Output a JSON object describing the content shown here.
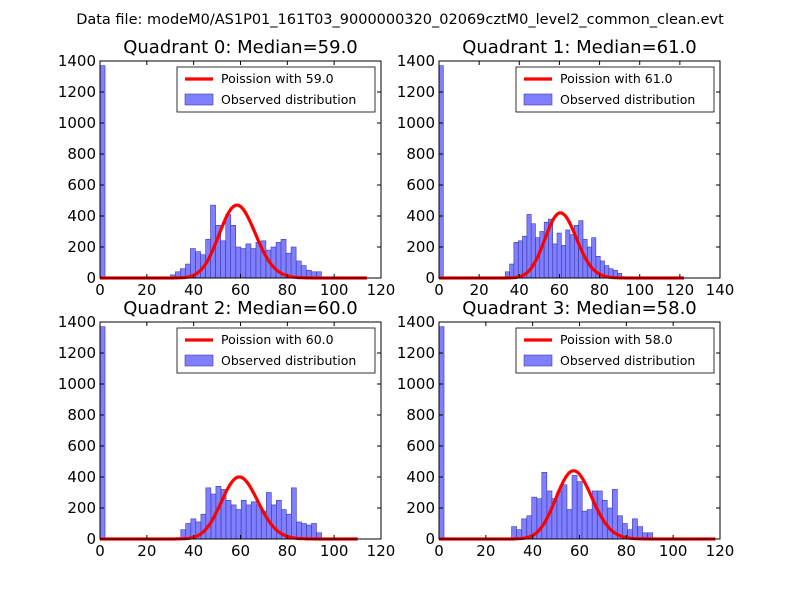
{
  "suptitle": "Data file: modeM0/AS1P01_161T03_9000000320_02069cztM0_level2_common_clean.evt",
  "colors": {
    "bar_fill": "#7f7fff",
    "bar_edge": "#3a3aa8",
    "poisson_line": "#ff0000"
  },
  "chart_data": [
    {
      "type": "bar+line",
      "title": "Quadrant 0: Median=59.0",
      "xlim": [
        0,
        120
      ],
      "ylim": [
        0,
        1400
      ],
      "xticks": [
        0,
        20,
        40,
        60,
        80,
        100,
        120
      ],
      "yticks": [
        0,
        200,
        400,
        600,
        800,
        1000,
        1200,
        1400
      ],
      "legend": {
        "position": "top-right",
        "line_label": "Poission with 59.0",
        "bar_label": "Observed distribution"
      },
      "histogram": {
        "bin_width": 2.15,
        "bins": [
          {
            "x": 0,
            "count": 1370
          },
          {
            "x": 30,
            "count": 20
          },
          {
            "x": 32.2,
            "count": 40
          },
          {
            "x": 34.3,
            "count": 60
          },
          {
            "x": 36.5,
            "count": 90
          },
          {
            "x": 38.6,
            "count": 190
          },
          {
            "x": 40.8,
            "count": 170
          },
          {
            "x": 42.9,
            "count": 150
          },
          {
            "x": 45.1,
            "count": 250
          },
          {
            "x": 47.2,
            "count": 470
          },
          {
            "x": 49.4,
            "count": 340
          },
          {
            "x": 51.5,
            "count": 240
          },
          {
            "x": 53.7,
            "count": 410
          },
          {
            "x": 55.8,
            "count": 340
          },
          {
            "x": 58,
            "count": 200
          },
          {
            "x": 60.1,
            "count": 190
          },
          {
            "x": 62.3,
            "count": 220
          },
          {
            "x": 64.4,
            "count": 190
          },
          {
            "x": 66.6,
            "count": 230
          },
          {
            "x": 68.7,
            "count": 240
          },
          {
            "x": 70.9,
            "count": 180
          },
          {
            "x": 73,
            "count": 200
          },
          {
            "x": 75.2,
            "count": 230
          },
          {
            "x": 77.3,
            "count": 250
          },
          {
            "x": 79.5,
            "count": 160
          },
          {
            "x": 81.6,
            "count": 200
          },
          {
            "x": 83.8,
            "count": 110
          },
          {
            "x": 85.9,
            "count": 80
          },
          {
            "x": 88.1,
            "count": 50
          },
          {
            "x": 90.2,
            "count": 40
          },
          {
            "x": 92.4,
            "count": 40
          }
        ]
      },
      "poisson": {
        "mean": 59,
        "peak": 470,
        "x_range": [
          0,
          114
        ]
      }
    },
    {
      "type": "bar+line",
      "title": "Quadrant 1: Median=61.0",
      "xlim": [
        0,
        140
      ],
      "ylim": [
        0,
        1400
      ],
      "xticks": [
        0,
        20,
        40,
        60,
        80,
        100,
        120,
        140
      ],
      "yticks": [
        0,
        200,
        400,
        600,
        800,
        1000,
        1200,
        1400
      ],
      "legend": {
        "position": "top-right",
        "line_label": "Poission with 61.0",
        "bar_label": "Observed distribution"
      },
      "histogram": {
        "bin_width": 2.15,
        "bins": [
          {
            "x": 0,
            "count": 1370
          },
          {
            "x": 33,
            "count": 40
          },
          {
            "x": 35.2,
            "count": 90
          },
          {
            "x": 37.3,
            "count": 230
          },
          {
            "x": 39.5,
            "count": 240
          },
          {
            "x": 41.6,
            "count": 270
          },
          {
            "x": 43.8,
            "count": 410
          },
          {
            "x": 45.9,
            "count": 350
          },
          {
            "x": 48.1,
            "count": 260
          },
          {
            "x": 50.2,
            "count": 300
          },
          {
            "x": 52.4,
            "count": 360
          },
          {
            "x": 54.5,
            "count": 380
          },
          {
            "x": 56.7,
            "count": 220
          },
          {
            "x": 58.8,
            "count": 290
          },
          {
            "x": 61,
            "count": 210
          },
          {
            "x": 63.1,
            "count": 310
          },
          {
            "x": 65.3,
            "count": 280
          },
          {
            "x": 67.4,
            "count": 340
          },
          {
            "x": 69.6,
            "count": 370
          },
          {
            "x": 71.7,
            "count": 250
          },
          {
            "x": 73.9,
            "count": 200
          },
          {
            "x": 76,
            "count": 260
          },
          {
            "x": 78.2,
            "count": 140
          },
          {
            "x": 80.3,
            "count": 110
          },
          {
            "x": 82.5,
            "count": 80
          },
          {
            "x": 84.6,
            "count": 60
          },
          {
            "x": 86.8,
            "count": 50
          },
          {
            "x": 88.9,
            "count": 30
          }
        ]
      },
      "poisson": {
        "mean": 61,
        "peak": 420,
        "x_range": [
          0,
          122
        ]
      }
    },
    {
      "type": "bar+line",
      "title": "Quadrant 2: Median=60.0",
      "xlim": [
        0,
        120
      ],
      "ylim": [
        0,
        1400
      ],
      "xticks": [
        0,
        20,
        40,
        60,
        80,
        100,
        120
      ],
      "yticks": [
        0,
        200,
        400,
        600,
        800,
        1000,
        1200,
        1400
      ],
      "legend": {
        "position": "top-right",
        "line_label": "Poission with 60.0",
        "bar_label": "Observed distribution"
      },
      "histogram": {
        "bin_width": 2.15,
        "bins": [
          {
            "x": 0,
            "count": 1370
          },
          {
            "x": 34.5,
            "count": 60
          },
          {
            "x": 36.6,
            "count": 100
          },
          {
            "x": 38.8,
            "count": 130
          },
          {
            "x": 40.9,
            "count": 110
          },
          {
            "x": 43.1,
            "count": 160
          },
          {
            "x": 45.2,
            "count": 330
          },
          {
            "x": 47.4,
            "count": 290
          },
          {
            "x": 49.5,
            "count": 340
          },
          {
            "x": 51.7,
            "count": 320
          },
          {
            "x": 53.8,
            "count": 250
          },
          {
            "x": 56,
            "count": 220
          },
          {
            "x": 58.1,
            "count": 190
          },
          {
            "x": 60.3,
            "count": 250
          },
          {
            "x": 62.4,
            "count": 220
          },
          {
            "x": 64.6,
            "count": 240
          },
          {
            "x": 66.7,
            "count": 220
          },
          {
            "x": 68.9,
            "count": 180
          },
          {
            "x": 71,
            "count": 300
          },
          {
            "x": 73.2,
            "count": 220
          },
          {
            "x": 75.3,
            "count": 250
          },
          {
            "x": 77.4,
            "count": 190
          },
          {
            "x": 79.6,
            "count": 160
          },
          {
            "x": 81.7,
            "count": 330
          },
          {
            "x": 83.9,
            "count": 110
          },
          {
            "x": 86,
            "count": 100
          },
          {
            "x": 88.2,
            "count": 90
          },
          {
            "x": 90.3,
            "count": 100
          },
          {
            "x": 92.5,
            "count": 40
          }
        ]
      },
      "poisson": {
        "mean": 60,
        "peak": 400,
        "x_range": [
          0,
          110
        ]
      }
    },
    {
      "type": "bar+line",
      "title": "Quadrant 3: Median=58.0",
      "xlim": [
        0,
        120
      ],
      "ylim": [
        0,
        1400
      ],
      "xticks": [
        0,
        20,
        40,
        60,
        80,
        100,
        120
      ],
      "yticks": [
        0,
        200,
        400,
        600,
        800,
        1000,
        1200,
        1400
      ],
      "legend": {
        "position": "top-right",
        "line_label": "Poission with 58.0",
        "bar_label": "Observed distribution"
      },
      "histogram": {
        "bin_width": 2.15,
        "bins": [
          {
            "x": 0,
            "count": 1370
          },
          {
            "x": 31,
            "count": 80
          },
          {
            "x": 33.2,
            "count": 60
          },
          {
            "x": 35.3,
            "count": 130
          },
          {
            "x": 37.5,
            "count": 150
          },
          {
            "x": 39.6,
            "count": 270
          },
          {
            "x": 41.8,
            "count": 260
          },
          {
            "x": 43.9,
            "count": 430
          },
          {
            "x": 46.1,
            "count": 310
          },
          {
            "x": 48.2,
            "count": 260
          },
          {
            "x": 50.4,
            "count": 310
          },
          {
            "x": 52.5,
            "count": 350
          },
          {
            "x": 54.7,
            "count": 190
          },
          {
            "x": 56.8,
            "count": 410
          },
          {
            "x": 59,
            "count": 370
          },
          {
            "x": 61.1,
            "count": 180
          },
          {
            "x": 63.3,
            "count": 190
          },
          {
            "x": 65.4,
            "count": 310
          },
          {
            "x": 67.6,
            "count": 310
          },
          {
            "x": 69.7,
            "count": 250
          },
          {
            "x": 71.9,
            "count": 200
          },
          {
            "x": 74,
            "count": 320
          },
          {
            "x": 76.2,
            "count": 150
          },
          {
            "x": 78.3,
            "count": 100
          },
          {
            "x": 80.5,
            "count": 60
          },
          {
            "x": 82.6,
            "count": 130
          },
          {
            "x": 84.8,
            "count": 80
          },
          {
            "x": 86.9,
            "count": 40
          },
          {
            "x": 89.1,
            "count": 40
          }
        ]
      },
      "poisson": {
        "mean": 58,
        "peak": 440,
        "x_range": [
          0,
          118
        ]
      }
    }
  ]
}
